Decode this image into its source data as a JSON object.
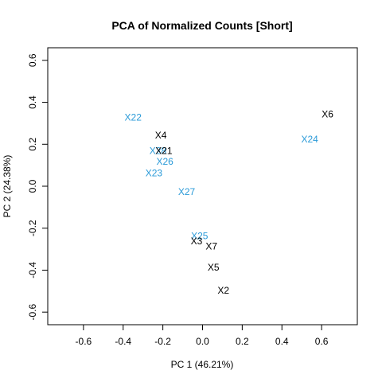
{
  "chart_data": {
    "type": "scatter",
    "title": "PCA of Normalized Counts [Short]",
    "xlabel": "PC 1 (46.21%)",
    "ylabel": "PC 2 (24.38%)",
    "xlim": [
      -0.78,
      0.78
    ],
    "ylim": [
      -0.66,
      0.66
    ],
    "x_ticks": [
      -0.6,
      -0.4,
      -0.2,
      0.0,
      0.2,
      0.4,
      0.6
    ],
    "x_tick_labels": [
      "-0.6",
      "-0.4",
      "-0.2",
      "0.0",
      "0.2",
      "0.4",
      "0.6"
    ],
    "y_ticks": [
      -0.6,
      -0.4,
      -0.2,
      0.0,
      0.2,
      0.4,
      0.6
    ],
    "y_tick_labels": [
      "-0.6",
      "-0.4",
      "-0.2",
      "0.0",
      "0.2",
      "0.4",
      "0.6"
    ],
    "grid": false,
    "colors": {
      "group_black": "#000000",
      "group_blue": "#2a9ad8"
    },
    "points": [
      {
        "label": "X6",
        "x": 0.63,
        "y": 0.34,
        "group": "black"
      },
      {
        "label": "X24",
        "x": 0.54,
        "y": 0.22,
        "group": "blue"
      },
      {
        "label": "X22",
        "x": -0.35,
        "y": 0.325,
        "group": "blue"
      },
      {
        "label": "X4",
        "x": -0.21,
        "y": 0.24,
        "group": "black"
      },
      {
        "label": "X28",
        "x": -0.225,
        "y": 0.165,
        "group": "blue"
      },
      {
        "label": "X21",
        "x": -0.195,
        "y": 0.165,
        "group": "black"
      },
      {
        "label": "X26",
        "x": -0.19,
        "y": 0.115,
        "group": "blue"
      },
      {
        "label": "X23",
        "x": -0.245,
        "y": 0.06,
        "group": "blue"
      },
      {
        "label": "X27",
        "x": -0.08,
        "y": -0.03,
        "group": "blue"
      },
      {
        "label": "X25",
        "x": -0.015,
        "y": -0.24,
        "group": "blue"
      },
      {
        "label": "X3",
        "x": -0.03,
        "y": -0.265,
        "group": "black"
      },
      {
        "label": "X7",
        "x": 0.045,
        "y": -0.29,
        "group": "black"
      },
      {
        "label": "X5",
        "x": 0.055,
        "y": -0.39,
        "group": "black"
      },
      {
        "label": "X2",
        "x": 0.105,
        "y": -0.5,
        "group": "black"
      }
    ]
  }
}
